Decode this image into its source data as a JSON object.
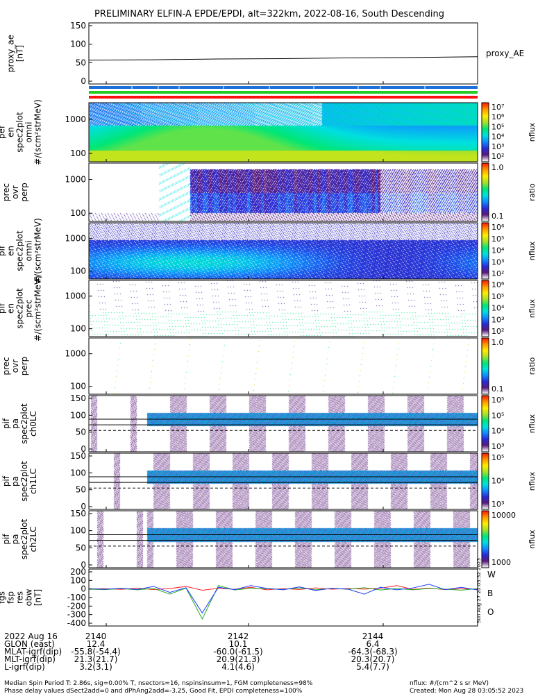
{
  "title": "PRELIMINARY ELFIN-A EPDE/EPDI, alt=322km, 2022-08-16, South Descending",
  "colors": {
    "frame": "#000000",
    "proxy_line": "#000000",
    "bar_blue": "#1e6fd9",
    "bar_green": "#22cc22",
    "bar_red": "#ff1010",
    "resid_w": "#ff2020",
    "resid_b": "#22aa22",
    "resid_o": "#1a3cff"
  },
  "status_bars": [
    "blue",
    "green",
    "red"
  ],
  "colorbar_stops": [
    "#ffffff",
    "#5a1a7a",
    "#2a2ad8",
    "#0f8cff",
    "#00e0e0",
    "#00e676",
    "#a6e02a",
    "#ffee00",
    "#ff9a00",
    "#ff1a00"
  ],
  "panels": [
    {
      "id": "proxy_ae",
      "ylabel": [
        "proxy_ae",
        "[nT]"
      ],
      "yticks": [
        "150",
        "100",
        "50",
        "0"
      ],
      "right_label": "proxy_AE"
    },
    {
      "id": "pef-omni",
      "ylabel": [
        "ela",
        "pef",
        "en",
        "spec2plot",
        "omni",
        "#/(scm²strMeV)"
      ],
      "yticks": [
        "1000",
        "100"
      ],
      "cbar": {
        "ticks": [
          "10⁷",
          "10⁶",
          "10⁵",
          "10⁴",
          "10³",
          "10²"
        ],
        "label": "nflux"
      }
    },
    {
      "id": "pef-ratio",
      "ylabel": [
        "prec",
        "ovr",
        "perp"
      ],
      "yticks": [
        "1000",
        "100"
      ],
      "cbar": {
        "ticks": [
          "1.0",
          "0.1"
        ],
        "label": "ratio"
      }
    },
    {
      "id": "pif-omni",
      "ylabel": [
        "ela",
        "pif",
        "en",
        "spec2plot",
        "omni",
        "#/(scm²strMeV)"
      ],
      "yticks": [
        "1000",
        "100"
      ],
      "cbar": {
        "ticks": [
          "10⁶",
          "10⁵",
          "10⁴",
          "10³",
          "10²"
        ],
        "label": "nflux"
      }
    },
    {
      "id": "pif-prec",
      "ylabel": [
        "ela",
        "pif",
        "en",
        "spec2plot",
        "prec",
        "#/(scm²strMeV)"
      ],
      "yticks": [
        "1000",
        "100"
      ],
      "cbar": {
        "ticks": [
          "10⁶",
          "10⁵",
          "10⁴",
          "10³",
          "10²"
        ],
        "label": "nflux"
      }
    },
    {
      "id": "pif-ratio",
      "ylabel": [
        "prec",
        "ovr",
        "perp"
      ],
      "yticks": [
        "1000",
        "100"
      ],
      "cbar": {
        "ticks": [
          "1.0",
          "0.1"
        ],
        "label": "ratio"
      }
    },
    {
      "id": "pa-ch0",
      "ylabel": [
        "ela",
        "pif",
        "pa",
        "spec2plot",
        "ch0LC"
      ],
      "yticks": [
        "150",
        "100",
        "50",
        "0"
      ],
      "cbar": {
        "ticks": [
          "10⁵",
          "10⁵",
          "10⁴",
          "10³"
        ],
        "label": "nflux"
      }
    },
    {
      "id": "pa-ch1",
      "ylabel": [
        "ela",
        "pif",
        "pa",
        "spec2plot",
        "ch1LC"
      ],
      "yticks": [
        "150",
        "100",
        "50",
        "0"
      ],
      "cbar": {
        "ticks": [
          "10⁵",
          "10⁴",
          "10³"
        ],
        "label": "nflux"
      }
    },
    {
      "id": "pa-ch2",
      "ylabel": [
        "ela",
        "pif",
        "pa",
        "spec2plot",
        "ch2LC"
      ],
      "yticks": [
        "150",
        "100",
        "50",
        "0"
      ],
      "cbar": {
        "ticks": [
          "10000",
          "1000"
        ],
        "label": "nflux"
      }
    },
    {
      "id": "fgs",
      "ylabel": [
        "ela",
        "fgs",
        "fsp",
        "res",
        "obw",
        "[nT]"
      ],
      "yticks": [
        "200",
        "100",
        "0",
        "-100",
        "-200",
        "-300",
        "-400"
      ],
      "legend": [
        "W",
        "B",
        "O"
      ]
    }
  ],
  "side_stamp": "Sun Aug 27 20:03:32 2023",
  "ephemeris": {
    "rows": [
      {
        "label": "2022 Aug 16",
        "values": [
          "2140",
          "2142",
          "2144"
        ]
      },
      {
        "label": "GLON (east)",
        "values": [
          "12.4",
          "10.1",
          "6.4"
        ]
      },
      {
        "label": "MLAT-igrf(dip)",
        "values": [
          "-55.8(-54.4)",
          "-60.0(-61.5)",
          "-64.3(-68.3)"
        ]
      },
      {
        "label": "MLT-igrf(dip)",
        "values": [
          "21.3(21.7)",
          "20.9(21.3)",
          "20.3(20.7)"
        ]
      },
      {
        "label": "L-igrf(dip)",
        "values": [
          "3.2(3.1)",
          "4.1(4.6)",
          "5.4(7.7)"
        ]
      }
    ]
  },
  "footer": {
    "left_line1": "Median Spin Period T: 2.86s, sig=0.00% T, nsectors=16, nspinsinsum=1, FGM completeness=98%",
    "left_line2": "Phase delay values dSect2add=0 and dPhAng2add=-3.25, Good Fit, EPDI completeness=100%",
    "right_line1": "nflux: #/(cm^2 s sr MeV)",
    "right_line2": "Created: Mon Aug 28 03:05:52 2023"
  },
  "chart_data": {
    "type": "line",
    "title": "PRELIMINARY ELFIN-A EPDE/EPDI, alt=322km, 2022-08-16, South Descending",
    "x_ticks": [
      "2140",
      "2142",
      "2144"
    ],
    "proxy_ae": {
      "ylim": [
        0,
        150
      ],
      "values": [
        57,
        58,
        60,
        61,
        63,
        64,
        66
      ]
    },
    "fgs_resid": {
      "ylim": [
        -400,
        200
      ],
      "series": [
        {
          "name": "W",
          "values": [
            0,
            3,
            -5,
            10,
            -8,
            5,
            30,
            -15,
            8,
            -4,
            20,
            -10,
            4,
            -6,
            12,
            -3,
            5,
            -2,
            8,
            40,
            -5,
            10,
            -8,
            3,
            -4
          ]
        },
        {
          "name": "B",
          "values": [
            -3,
            -8,
            4,
            -10,
            6,
            -60,
            10,
            -350,
            40,
            -12,
            8,
            3,
            -6,
            12,
            -10,
            6,
            -4,
            15,
            -12,
            5,
            -10,
            6,
            -3,
            -14,
            4
          ]
        },
        {
          "name": "O",
          "values": [
            2,
            -4,
            8,
            -6,
            30,
            -40,
            15,
            -280,
            20,
            -8,
            40,
            6,
            -10,
            25,
            -18,
            8,
            -2,
            -60,
            20,
            -10,
            12,
            55,
            -8,
            20,
            -12
          ]
        }
      ]
    }
  }
}
